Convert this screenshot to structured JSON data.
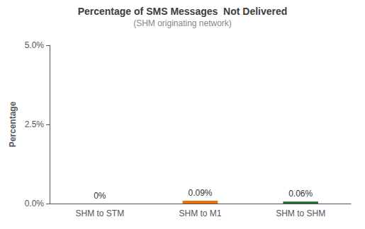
{
  "chart_data": {
    "type": "bar",
    "title": "Percentage of SMS Messages  Not Delivered",
    "subtitle": "(SHM originating network)",
    "categories": [
      "SHM to STM",
      "SHM to M1",
      "SHM to SHM"
    ],
    "values": [
      0.0,
      0.09,
      0.06
    ],
    "value_labels": [
      "0%",
      "0.09%",
      "0.06%"
    ],
    "data_labels": true,
    "colors": [
      "#4472c4",
      "#e8710a",
      "#1f6b2e"
    ],
    "ylabel": "Percentage",
    "ylim": [
      0,
      5.0
    ],
    "yticks": [
      {
        "value": 0.0,
        "label": "0.0%"
      },
      {
        "value": 2.5,
        "label": "2.5%"
      },
      {
        "value": 5.0,
        "label": "5.0%"
      }
    ],
    "grid": false
  }
}
